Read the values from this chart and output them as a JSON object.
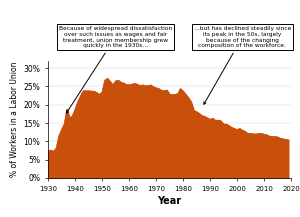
{
  "title": "",
  "xlabel": "Year",
  "ylabel": "% of Workers in a Labor Union",
  "fill_color": "#C8500A",
  "line_color": "#C8500A",
  "xlim": [
    1930,
    2020
  ],
  "ylim": [
    0,
    0.32
  ],
  "yticks": [
    0,
    0.05,
    0.1,
    0.15,
    0.2,
    0.25,
    0.3
  ],
  "ytick_labels": [
    "0%",
    "5%",
    "10%",
    "15%",
    "20%",
    "25%",
    "30%"
  ],
  "xticks": [
    1930,
    1940,
    1950,
    1960,
    1970,
    1980,
    1990,
    2000,
    2010,
    2020
  ],
  "annotation1": "Because of widespread dissatisfaction\nover such issues as wages and fair\ntreatment, union membership grew\nquickly in the 1930s…",
  "annotation2": "…but has declined steadily since\nits peak in the 50s, largely\nbecause of the changing\ncomposition of the workforce.",
  "years": [
    1930,
    1931,
    1932,
    1933,
    1934,
    1935,
    1936,
    1937,
    1938,
    1939,
    1940,
    1941,
    1942,
    1943,
    1944,
    1945,
    1946,
    1947,
    1948,
    1949,
    1950,
    1951,
    1952,
    1953,
    1954,
    1955,
    1956,
    1957,
    1958,
    1959,
    1960,
    1961,
    1962,
    1963,
    1964,
    1965,
    1966,
    1967,
    1968,
    1969,
    1970,
    1971,
    1972,
    1973,
    1974,
    1975,
    1976,
    1977,
    1978,
    1979,
    1980,
    1981,
    1982,
    1983,
    1984,
    1985,
    1986,
    1987,
    1988,
    1989,
    1990,
    1991,
    1992,
    1993,
    1994,
    1995,
    1996,
    1997,
    1998,
    1999,
    2000,
    2001,
    2002,
    2003,
    2004,
    2005,
    2006,
    2007,
    2008,
    2009,
    2010,
    2011,
    2012,
    2013,
    2014,
    2015,
    2016,
    2017,
    2018,
    2019
  ],
  "values": [
    0.074,
    0.076,
    0.073,
    0.081,
    0.115,
    0.132,
    0.148,
    0.188,
    0.163,
    0.17,
    0.188,
    0.208,
    0.224,
    0.238,
    0.238,
    0.238,
    0.237,
    0.237,
    0.233,
    0.228,
    0.235,
    0.267,
    0.272,
    0.263,
    0.254,
    0.265,
    0.267,
    0.261,
    0.259,
    0.255,
    0.254,
    0.256,
    0.258,
    0.256,
    0.252,
    0.254,
    0.252,
    0.252,
    0.254,
    0.249,
    0.246,
    0.244,
    0.239,
    0.238,
    0.24,
    0.228,
    0.228,
    0.228,
    0.23,
    0.244,
    0.237,
    0.228,
    0.219,
    0.207,
    0.184,
    0.181,
    0.176,
    0.17,
    0.168,
    0.164,
    0.16,
    0.163,
    0.157,
    0.158,
    0.156,
    0.147,
    0.147,
    0.143,
    0.138,
    0.135,
    0.132,
    0.135,
    0.13,
    0.127,
    0.121,
    0.122,
    0.12,
    0.12,
    0.121,
    0.122,
    0.119,
    0.118,
    0.114,
    0.113,
    0.113,
    0.112,
    0.108,
    0.107,
    0.105,
    0.104
  ]
}
